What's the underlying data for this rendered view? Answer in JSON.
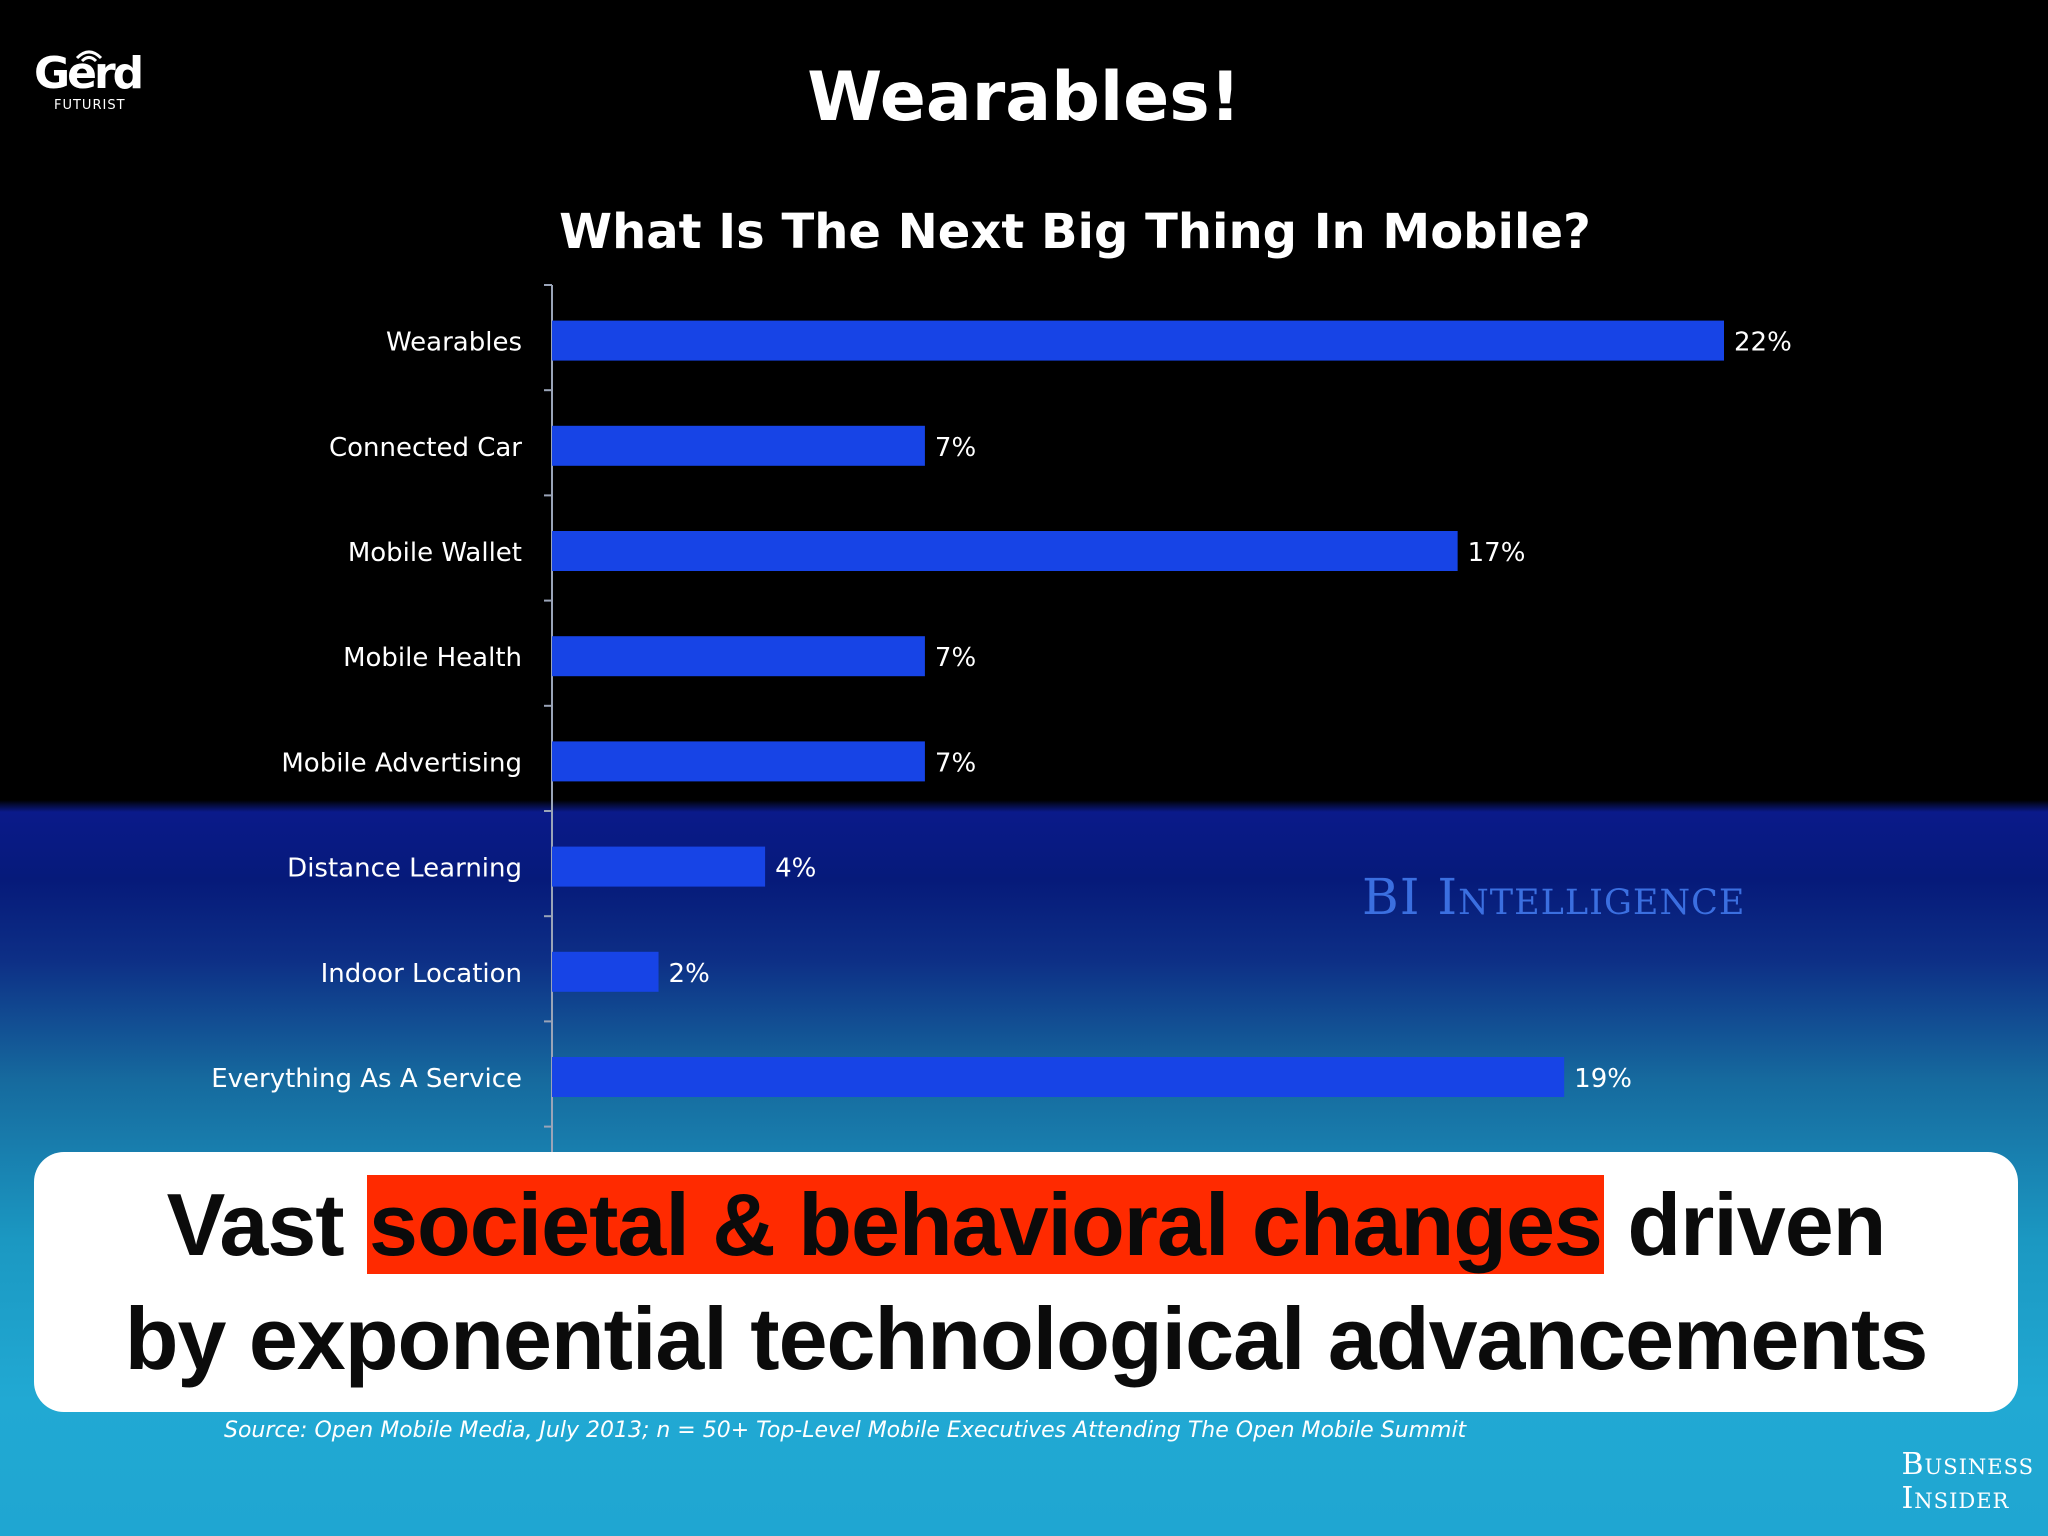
{
  "logo": {
    "word": "Gerd",
    "sub": "FUTURIST"
  },
  "slide_title": "Wearables!",
  "watermark": "BI Intelligence",
  "caption": {
    "pre": "Vast ",
    "highlight": "societal & behavioral changes",
    "post": " driven",
    "line2": "by exponential technological advancements",
    "highlight_color": "#ff2a00"
  },
  "source": "Source: Open Mobile Media, July 2013; n = 50+ Top-Level Mobile Executives Attending The Open Mobile Summit",
  "publisher": {
    "line1": "Business",
    "line2": "Insider"
  },
  "chart_data": {
    "type": "bar",
    "orientation": "horizontal",
    "title": "What Is The Next Big Thing In Mobile?",
    "categories": [
      "Wearables",
      "Connected Car",
      "Mobile Wallet",
      "Mobile Health",
      "Mobile Advertising",
      "Distance Learning",
      "Indoor Location",
      "Everything As A Service"
    ],
    "values": [
      22,
      7,
      17,
      7,
      7,
      4,
      2,
      19
    ],
    "value_labels": [
      "22%",
      "7%",
      "17%",
      "7%",
      "7%",
      "4%",
      "2%",
      "19%"
    ],
    "xlim": [
      0,
      22
    ],
    "bar_color": "#1744e6",
    "grid": false,
    "legend": "none"
  }
}
